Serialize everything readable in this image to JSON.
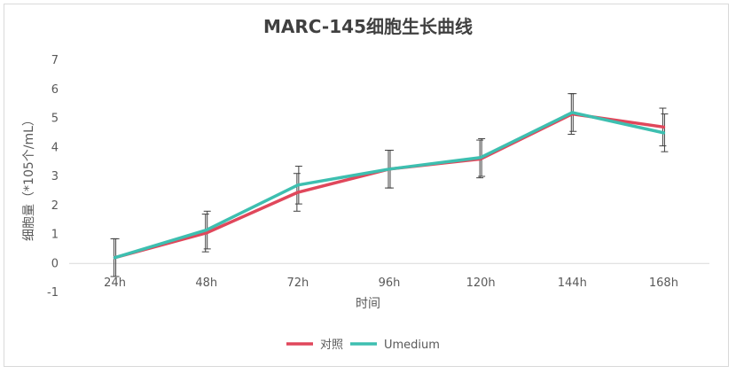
{
  "chart_data": {
    "type": "line",
    "title": "MARC-145细胞生长曲线",
    "xlabel": "时间",
    "ylabel": "细胞量（*105个/mL）",
    "categories": [
      "24h",
      "48h",
      "72h",
      "96h",
      "120h",
      "144h",
      "168h"
    ],
    "ylim": [
      -1,
      7
    ],
    "yticks": [
      -1,
      0,
      1,
      2,
      3,
      4,
      5,
      6,
      7
    ],
    "grid": false,
    "legend_position": "bottom",
    "series": [
      {
        "name": "对照",
        "color": "#e0475b",
        "values": [
          0.2,
          1.05,
          2.45,
          3.25,
          3.6,
          5.15,
          4.7
        ],
        "error": [
          0.65,
          0.65,
          0.65,
          0.65,
          0.65,
          0.7,
          0.65
        ]
      },
      {
        "name": "Umedium",
        "color": "#3dbfb0",
        "values": [
          0.2,
          1.15,
          2.7,
          3.25,
          3.65,
          5.2,
          4.5
        ],
        "error": [
          0.65,
          0.65,
          0.65,
          0.65,
          0.65,
          0.65,
          0.65
        ]
      }
    ]
  }
}
